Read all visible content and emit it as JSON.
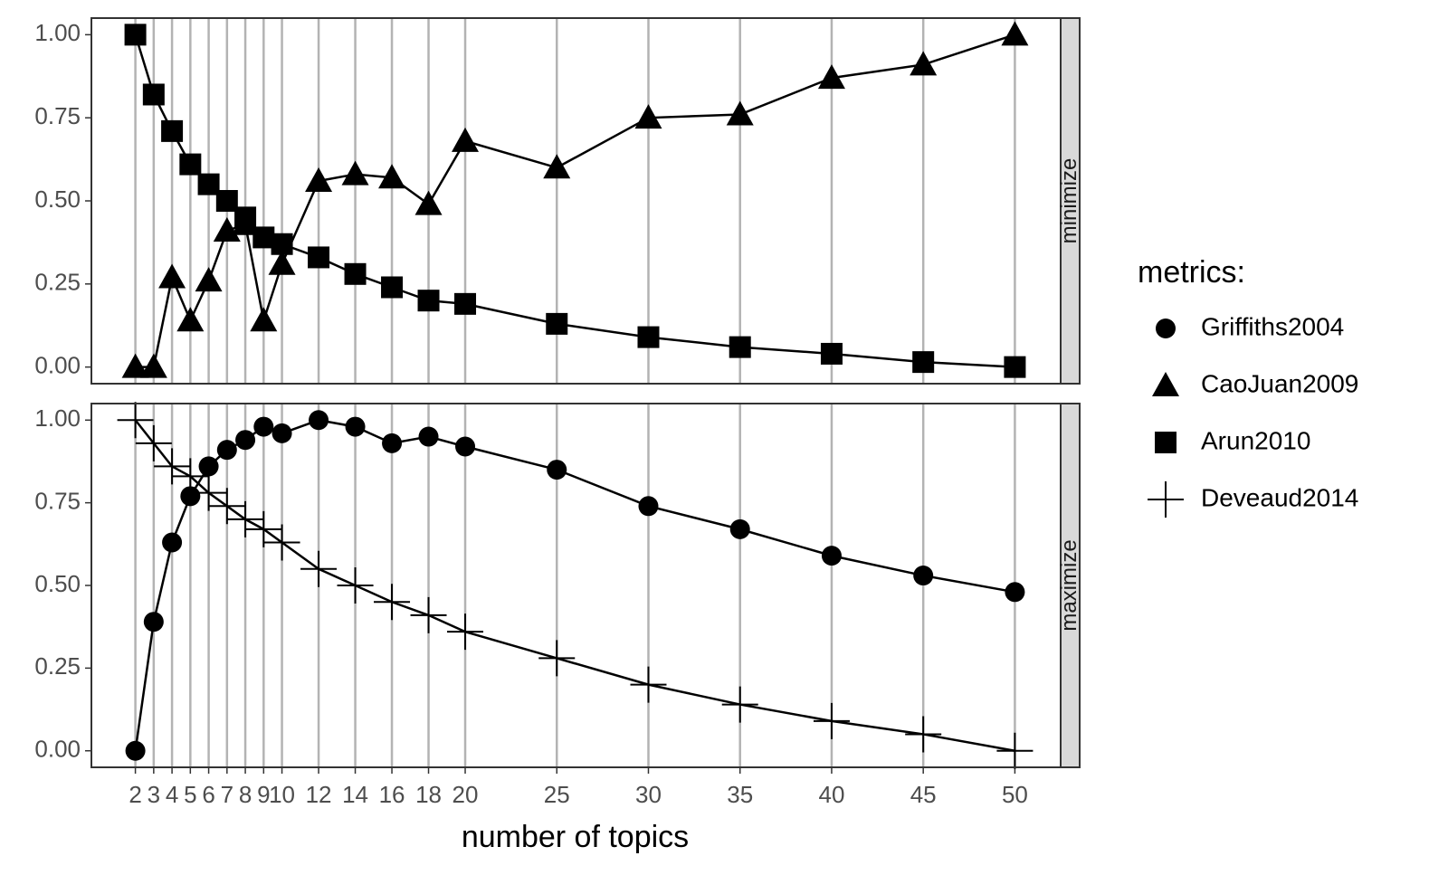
{
  "chart_data": [
    {
      "type": "line",
      "strip": "minimize",
      "legend_title": "metrics:",
      "legend": "right",
      "grid": "x",
      "x": [
        2,
        3,
        4,
        5,
        6,
        7,
        8,
        9,
        10,
        12,
        14,
        16,
        18,
        20,
        25,
        30,
        35,
        40,
        45,
        50
      ],
      "xlim": [
        -0.4,
        52.4
      ],
      "xticks": [
        2,
        3,
        4,
        5,
        6,
        7,
        8,
        9,
        10,
        12,
        14,
        16,
        18,
        20,
        25,
        30,
        35,
        40,
        45,
        50
      ],
      "ylim": [
        -0.05,
        1.05
      ],
      "yticks": [
        {
          "value": 0,
          "label": "0.00"
        },
        {
          "value": 0.25,
          "label": "0.25"
        },
        {
          "value": 0.5,
          "label": "0.50"
        },
        {
          "value": 0.75,
          "label": "0.75"
        },
        {
          "value": 1,
          "label": "1.00"
        }
      ],
      "series": [
        {
          "name": "CaoJuan2009",
          "color": "#000000",
          "marker": "triangle",
          "values": [
            0,
            0,
            0.27,
            0.14,
            0.26,
            0.41,
            0.43,
            0.14,
            0.31,
            0.56,
            0.58,
            0.57,
            0.49,
            0.68,
            0.6,
            0.75,
            0.76,
            0.87,
            0.91,
            1.0
          ]
        },
        {
          "name": "Arun2010",
          "color": "#000000",
          "marker": "square",
          "values": [
            1.0,
            0.82,
            0.71,
            0.61,
            0.55,
            0.5,
            0.45,
            0.39,
            0.37,
            0.33,
            0.28,
            0.24,
            0.2,
            0.19,
            0.13,
            0.09,
            0.06,
            0.04,
            0.015,
            0
          ]
        }
      ]
    },
    {
      "type": "line",
      "strip": "maximize",
      "xlabel": "number of topics",
      "grid": "x",
      "x": [
        2,
        3,
        4,
        5,
        6,
        7,
        8,
        9,
        10,
        12,
        14,
        16,
        18,
        20,
        25,
        30,
        35,
        40,
        45,
        50
      ],
      "xlim": [
        -0.4,
        52.4
      ],
      "xticks": [
        2,
        3,
        4,
        5,
        6,
        7,
        8,
        9,
        10,
        12,
        14,
        16,
        18,
        20,
        25,
        30,
        35,
        40,
        45,
        50
      ],
      "ylim": [
        -0.05,
        1.05
      ],
      "yticks": [
        {
          "value": 0,
          "label": "0.00"
        },
        {
          "value": 0.25,
          "label": "0.25"
        },
        {
          "value": 0.5,
          "label": "0.50"
        },
        {
          "value": 0.75,
          "label": "0.75"
        },
        {
          "value": 1,
          "label": "1.00"
        }
      ],
      "series": [
        {
          "name": "Griffiths2004",
          "color": "#000000",
          "marker": "circle",
          "values": [
            0,
            0.39,
            0.63,
            0.77,
            0.86,
            0.91,
            0.94,
            0.98,
            0.96,
            1.0,
            0.98,
            0.93,
            0.95,
            0.92,
            0.85,
            0.74,
            0.67,
            0.59,
            0.53,
            0.48
          ]
        },
        {
          "name": "Deveaud2014",
          "color": "#000000",
          "marker": "plus",
          "values": [
            1.0,
            0.93,
            0.86,
            0.83,
            0.78,
            0.74,
            0.7,
            0.67,
            0.63,
            0.55,
            0.5,
            0.45,
            0.41,
            0.36,
            0.28,
            0.2,
            0.14,
            0.09,
            0.05,
            0
          ]
        }
      ]
    }
  ]
}
